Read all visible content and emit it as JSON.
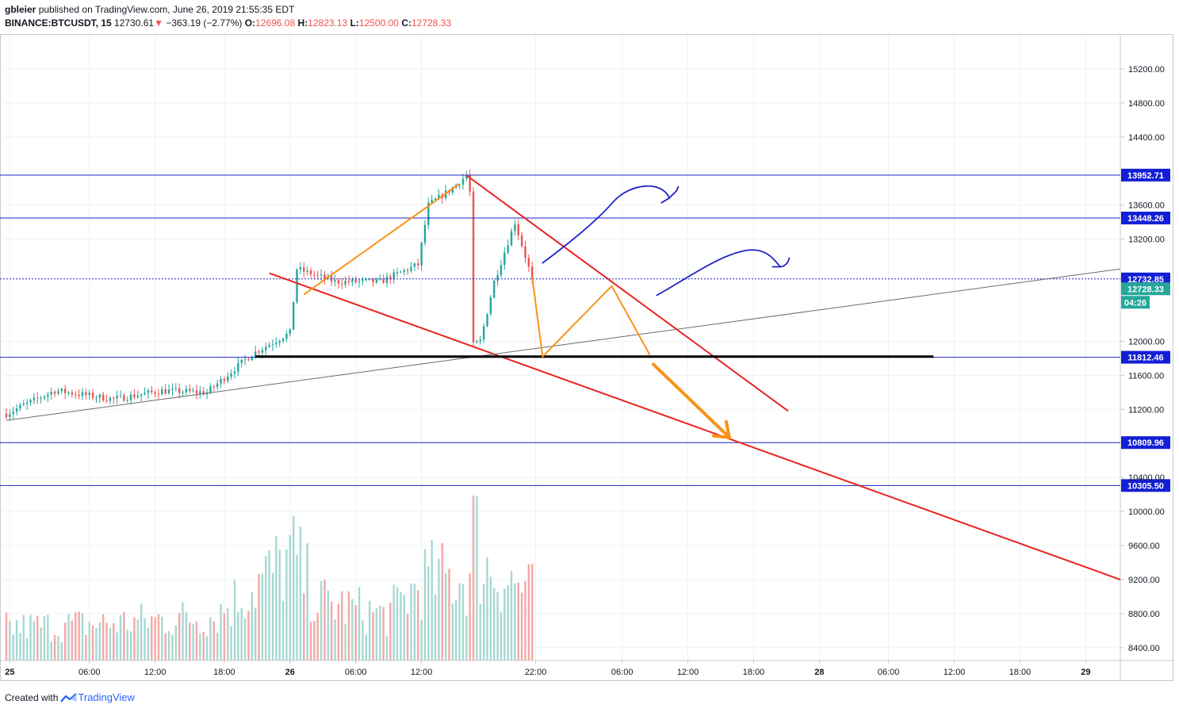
{
  "header": {
    "author": "gbleier",
    "published_text": "published on TradingView.com, June 26, 2019 21:55:35 EDT",
    "symbol": "BINANCE:BTCUSDT, 15",
    "last": "12730.61",
    "change_arrow": "▼",
    "change": "−363.19 (−2.77%)",
    "open_label": "O:",
    "open": "12696.08",
    "high_label": "H:",
    "high": "12823.13",
    "low_label": "L:",
    "low": "12500.00",
    "close_label": "C:",
    "close": "12728.33"
  },
  "footer": {
    "created_with": "Created with",
    "brand": "TradingView"
  },
  "colors": {
    "up": "#26a69a",
    "down": "#ef5350",
    "vol_up": "#a6d8d3",
    "vol_down": "#f3a8a6",
    "blue_line": "#1e22c8",
    "red_line": "#e8231f",
    "orange_line": "#f7931a",
    "black_line": "#000000",
    "gray_line": "#6b6b6b",
    "tag_blue": "#131fd4",
    "tag_green": "#26a69a"
  },
  "chart_data": {
    "type": "candlestick",
    "instrument": "BINANCE:BTCUSDT",
    "interval": "15",
    "ylim": [
      8250,
      15600
    ],
    "xlim": [
      0,
      322
    ],
    "y_ticks": [
      "15200.00",
      "14800.00",
      "14400.00",
      "13600.00",
      "13200.00",
      "12000.00",
      "11600.00",
      "11200.00",
      "10400.00",
      "10000.00",
      "9600.00",
      "9200.00",
      "8800.00",
      "8400.00"
    ],
    "x_ticks": [
      {
        "label": "25",
        "t": 1
      },
      {
        "label": "06:00",
        "t": 24
      },
      {
        "label": "12:00",
        "t": 43
      },
      {
        "label": "18:00",
        "t": 63
      },
      {
        "label": "26",
        "t": 82
      },
      {
        "label": "06:00",
        "t": 101
      },
      {
        "label": "12:00",
        "t": 120
      },
      {
        "label": "22:00",
        "t": 153
      },
      {
        "label": "06:00",
        "t": 178
      },
      {
        "label": "12:00",
        "t": 197
      },
      {
        "label": "18:00",
        "t": 216
      },
      {
        "label": "28",
        "t": 235
      },
      {
        "label": "06:00",
        "t": 255
      },
      {
        "label": "12:00",
        "t": 274
      },
      {
        "label": "18:00",
        "t": 293
      },
      {
        "label": "29",
        "t": 312
      }
    ],
    "price_anchors": [
      {
        "t": 0,
        "p": 11150
      },
      {
        "t": 14,
        "p": 11420
      },
      {
        "t": 31,
        "p": 11320
      },
      {
        "t": 45,
        "p": 11420
      },
      {
        "t": 58,
        "p": 11400
      },
      {
        "t": 71,
        "p": 11850
      },
      {
        "t": 82,
        "p": 12100
      },
      {
        "t": 84,
        "p": 12850
      },
      {
        "t": 95,
        "p": 12700
      },
      {
        "t": 108,
        "p": 12700
      },
      {
        "t": 119,
        "p": 12900
      },
      {
        "t": 122,
        "p": 13600
      },
      {
        "t": 129,
        "p": 13800
      },
      {
        "t": 133,
        "p": 13950
      },
      {
        "t": 134,
        "p": 13750
      },
      {
        "t": 135,
        "p": 11950
      },
      {
        "t": 137,
        "p": 12000
      },
      {
        "t": 141,
        "p": 12700
      },
      {
        "t": 147,
        "p": 13400
      },
      {
        "t": 150,
        "p": 13000
      },
      {
        "t": 152,
        "p": 12728
      }
    ],
    "volume_profile": [
      {
        "t": 0,
        "v": 0.22
      },
      {
        "t": 30,
        "v": 0.25
      },
      {
        "t": 60,
        "v": 0.3
      },
      {
        "t": 83,
        "v": 0.7
      },
      {
        "t": 90,
        "v": 0.4
      },
      {
        "t": 110,
        "v": 0.3
      },
      {
        "t": 121,
        "v": 0.55
      },
      {
        "t": 134,
        "v": 0.55
      },
      {
        "t": 135,
        "v": 1.0
      },
      {
        "t": 137,
        "v": 0.65
      },
      {
        "t": 152,
        "v": 0.45
      }
    ],
    "horizontal_levels": [
      {
        "price": 13952.71,
        "label": "13952.71",
        "color": "blue"
      },
      {
        "price": 13448.26,
        "label": "13448.26",
        "color": "blue"
      },
      {
        "price": 11812.46,
        "label": "11812.46",
        "color": "blue"
      },
      {
        "price": 10809.96,
        "label": "10809.96",
        "color": "blue"
      },
      {
        "price": 10305.5,
        "label": "10305.50",
        "color": "blue"
      }
    ],
    "current_price_line": {
      "price": 12732.85,
      "label": "12732.85"
    },
    "last_price_tag": {
      "price": 12728.33,
      "label": "12728.33",
      "countdown": "04:26"
    },
    "trendlines": [
      {
        "name": "upper-red",
        "from": [
          133,
          13950
        ],
        "to": [
          226,
          11180
        ]
      },
      {
        "name": "lower-red",
        "from": [
          76,
          12800
        ],
        "to": [
          322,
          9200
        ]
      },
      {
        "name": "gray-support",
        "from": [
          0,
          11070
        ],
        "to": [
          322,
          12850
        ]
      },
      {
        "name": "black-support",
        "from": [
          72,
          11820
        ],
        "to": [
          268,
          11820
        ]
      }
    ],
    "orange_path_up": [
      [
        86,
        12550
      ],
      [
        131,
        13850
      ]
    ],
    "orange_path_projection": [
      [
        152,
        12750
      ],
      [
        155,
        11820
      ],
      [
        175,
        12650
      ],
      [
        186,
        11840
      ]
    ],
    "orange_arrow": {
      "from": [
        187,
        11730
      ],
      "to": [
        209,
        10870
      ]
    },
    "blue_curves": [
      {
        "name": "blue-curve-upper",
        "from": [
          155,
          12920
        ]
      },
      {
        "name": "blue-curve-lower",
        "from": [
          188,
          12540
        ]
      }
    ]
  }
}
